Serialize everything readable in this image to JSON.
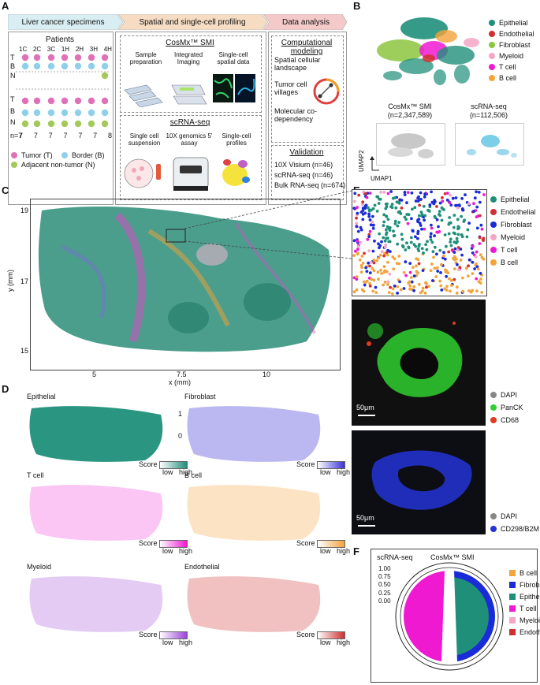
{
  "panel_labels": {
    "A": "A",
    "B": "B",
    "C": "C",
    "D": "D",
    "E": "E",
    "F": "F"
  },
  "colors": {
    "epithelial": "#1f8f7a",
    "endothelial": "#d03030",
    "fibroblast": "#8cc63f",
    "myeloid": "#f4a6c6",
    "tcell": "#f019d2",
    "bcell": "#f2a33a",
    "fibroblast_blue": "#1a2bd8",
    "tumor": "#e070b8",
    "border": "#8ed0ea",
    "adjacent": "#a3c95b"
  },
  "panelA": {
    "header": [
      "Liver cancer specimens",
      "Spatial and single-cell profiling",
      "Data analysis"
    ],
    "patients_title": "Patients",
    "patient_ids": [
      "1C",
      "2C",
      "3C",
      "1H",
      "2H",
      "3H",
      "4H"
    ],
    "row_labels_top": [
      "T",
      "B",
      "N"
    ],
    "row_labels_bottom": [
      "T",
      "B",
      "N"
    ],
    "n_label": "n=7",
    "counts": [
      "7",
      "7",
      "7",
      "7",
      "7",
      "7",
      "8"
    ],
    "legend": [
      "Tumor (T)",
      "Border (B)",
      "Adjacent non-tumor (N)"
    ],
    "cosmx_title": "CosMx™ SMI",
    "cosmx_steps": [
      "Sample preparation",
      "Integrated Imaging",
      "Single-cell spatial data"
    ],
    "scrna_title": "scRNA-seq",
    "scrna_steps": [
      "Single cell suspension",
      "10X genomics 5' assay",
      "Single-cell profiles"
    ],
    "comp_title": "Computational modeling",
    "comp_items": [
      "Spatial cellular landscape",
      "Tumor cell villages",
      "Molecular co-dependency"
    ],
    "validation_title": "Validation",
    "validation_items": [
      "10X Visium (n=46)",
      "scRNA-seq (n=46)",
      "Bulk RNA-seq (n=674)"
    ]
  },
  "panelB": {
    "legend": [
      "Epithelial",
      "Endothelial",
      "Fibroblast",
      "Myeloid",
      "T cell",
      "B cell"
    ],
    "cosmx_label": "CosMx™ SMI",
    "cosmx_n": "(n=2,347,589)",
    "scrna_label": "scRNA-seq",
    "scrna_n": "(n=112,506)",
    "umap1": "UMAP1",
    "umap2": "UMAP2"
  },
  "panelC": {
    "ylabel": "y (mm)",
    "xlabel": "x (mm)",
    "yticks": [
      "19",
      "17",
      "15"
    ],
    "xticks": [
      "5",
      "7.5",
      "10"
    ]
  },
  "panelD": {
    "maps": [
      "Epithelial",
      "Fibroblast",
      "T cell",
      "B cell",
      "Myeloid",
      "Endothelial"
    ],
    "scale_ticks": [
      "1",
      "0"
    ],
    "score": "Score",
    "low": "low",
    "high": "high"
  },
  "panelE": {
    "legend": [
      "Epithelial",
      "Endothelial",
      "Fibroblast",
      "Myeloid",
      "T cell",
      "B cell"
    ],
    "img2_legend": [
      "DAPI",
      "PanCK",
      "CD68"
    ],
    "img3_legend": [
      "DAPI",
      "CD298/B2M"
    ],
    "scalebar": "50μm"
  },
  "panelF": {
    "left_title": "scRNA-seq",
    "right_title": "CosMx™ SMI",
    "ticks": [
      "1.00",
      "0.75",
      "0.50",
      "0.25",
      "0.00"
    ],
    "legend": [
      "B cell",
      "Fibroblast",
      "Epithelial",
      "T cell",
      "Myeloid",
      "Endothelial"
    ]
  }
}
